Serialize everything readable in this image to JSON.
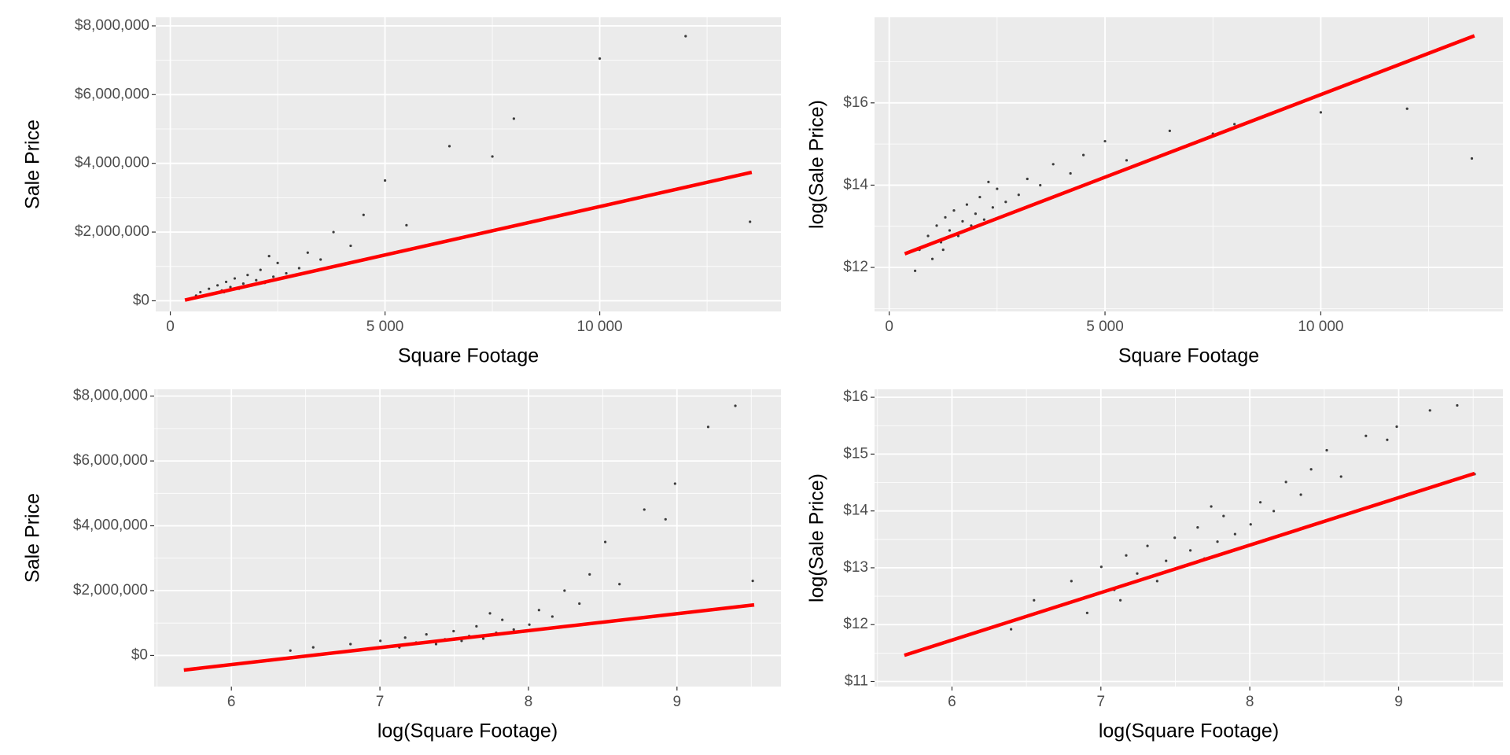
{
  "chart_data": [
    {
      "type": "scatter",
      "x_label": "Square Footage",
      "y_label": "Sale Price",
      "color": "#000000",
      "grid": true,
      "x": [
        700,
        900,
        1000,
        1100,
        1200,
        1300,
        1400,
        1500,
        1600,
        1700,
        1800,
        1900,
        2000,
        2100,
        2200,
        2400,
        2500,
        2700,
        3000,
        3200,
        3500,
        3800,
        4200,
        4500,
        5000,
        5500,
        6500,
        7500,
        8000,
        10000,
        12000,
        13500,
        600,
        1250,
        2300
      ],
      "values": [
        250000,
        350000,
        200000,
        450000,
        300000,
        550000,
        400000,
        650000,
        350000,
        500000,
        750000,
        450000,
        600000,
        900000,
        520000,
        700000,
        1100000,
        800000,
        950000,
        1400000,
        1200000,
        2000000,
        1600000,
        2500000,
        3500000,
        2200000,
        4500000,
        4200000,
        5300000,
        7050000,
        7700000,
        2300000,
        150000,
        250000,
        1300000
      ],
      "line": {
        "x": [
          340,
          13540
        ],
        "values": [
          20000,
          3740000
        ],
        "color": "#ff0000"
      },
      "xlim": [
        -340,
        14220
      ],
      "ylim": [
        -310000,
        8250000
      ],
      "xticks": [
        0,
        {
          "value": 5000,
          "label": "5 000"
        },
        {
          "value": 10000,
          "label": "10 000"
        }
      ],
      "yticks": [
        {
          "value": 0,
          "label": "$0"
        },
        {
          "value": 2000000,
          "label": "$2,000,000"
        },
        {
          "value": 4000000,
          "label": "$4,000,000"
        },
        {
          "value": 6000000,
          "label": "$6,000,000"
        },
        {
          "value": 8000000,
          "label": "$8,000,000"
        }
      ]
    },
    {
      "type": "scatter",
      "x_label": "Square Footage",
      "y_label": "log(Sale Price)",
      "color": "#000000",
      "grid": true,
      "x": [
        700,
        900,
        1000,
        1100,
        1200,
        1300,
        1400,
        1500,
        1600,
        1700,
        1800,
        1900,
        2000,
        2100,
        2200,
        2400,
        2500,
        2700,
        3000,
        3200,
        3500,
        3800,
        4200,
        4500,
        5000,
        5500,
        6500,
        7500,
        8000,
        10000,
        12000,
        13500,
        600,
        1250,
        2300
      ],
      "values": [
        12.429,
        12.766,
        12.206,
        13.017,
        12.612,
        13.218,
        12.899,
        13.385,
        12.766,
        13.122,
        13.528,
        13.017,
        13.305,
        13.71,
        13.162,
        13.459,
        13.911,
        13.592,
        13.764,
        14.152,
        13.998,
        14.509,
        14.286,
        14.732,
        15.068,
        14.604,
        15.32,
        15.251,
        15.483,
        15.769,
        15.857,
        14.648,
        11.918,
        12.429,
        14.078
      ],
      "line": {
        "x": [
          360,
          13560
        ],
        "values": [
          12.33,
          17.63
        ],
        "color": "#ff0000"
      },
      "xlim": [
        -340,
        14220
      ],
      "ylim": [
        10.93,
        18.08
      ],
      "xticks": [
        0,
        {
          "value": 5000,
          "label": "5 000"
        },
        {
          "value": 10000,
          "label": "10 000"
        }
      ],
      "yticks": [
        {
          "value": 12,
          "label": "$12"
        },
        {
          "value": 14,
          "label": "$14"
        },
        {
          "value": 16,
          "label": "$16"
        }
      ]
    },
    {
      "type": "scatter",
      "x_label": "log(Square Footage)",
      "y_label": "Sale Price",
      "color": "#000000",
      "grid": true,
      "x": [
        6.551,
        6.802,
        6.908,
        7.003,
        7.09,
        7.17,
        7.244,
        7.313,
        7.378,
        7.438,
        7.496,
        7.55,
        7.601,
        7.65,
        7.696,
        7.783,
        7.824,
        7.901,
        8.006,
        8.071,
        8.161,
        8.243,
        8.343,
        8.412,
        8.517,
        8.613,
        8.78,
        8.923,
        8.987,
        9.21,
        9.393,
        9.51,
        6.397,
        7.131,
        7.741
      ],
      "values": [
        250000,
        350000,
        200000,
        450000,
        300000,
        550000,
        400000,
        650000,
        350000,
        500000,
        750000,
        450000,
        600000,
        900000,
        520000,
        700000,
        1100000,
        800000,
        950000,
        1400000,
        1200000,
        2000000,
        1600000,
        2500000,
        3500000,
        2200000,
        4500000,
        4200000,
        5300000,
        7050000,
        7700000,
        2300000,
        150000,
        250000,
        1300000
      ],
      "line": {
        "x": [
          5.68,
          9.52
        ],
        "values": [
          -450000,
          1560000
        ],
        "color": "#ff0000"
      },
      "xlim": [
        5.48,
        9.7
      ],
      "ylim": [
        -960000,
        8210000
      ],
      "xticks": [
        6,
        7,
        8,
        9
      ],
      "yticks": [
        {
          "value": 0,
          "label": "$0"
        },
        {
          "value": 2000000,
          "label": "$2,000,000"
        },
        {
          "value": 4000000,
          "label": "$4,000,000"
        },
        {
          "value": 6000000,
          "label": "$6,000,000"
        },
        {
          "value": 8000000,
          "label": "$8,000,000"
        }
      ]
    },
    {
      "type": "scatter",
      "x_label": "log(Square Footage)",
      "y_label": "log(Sale Price)",
      "color": "#000000",
      "grid": true,
      "x": [
        6.551,
        6.802,
        6.908,
        7.003,
        7.09,
        7.17,
        7.244,
        7.313,
        7.378,
        7.438,
        7.496,
        7.55,
        7.601,
        7.65,
        7.696,
        7.783,
        7.824,
        7.901,
        8.006,
        8.071,
        8.161,
        8.243,
        8.343,
        8.412,
        8.517,
        8.613,
        8.78,
        8.923,
        8.987,
        9.21,
        9.393,
        9.51,
        6.397,
        7.131,
        7.741
      ],
      "values": [
        12.429,
        12.766,
        12.206,
        13.017,
        12.612,
        13.218,
        12.899,
        13.385,
        12.766,
        13.122,
        13.528,
        13.017,
        13.305,
        13.71,
        13.162,
        13.459,
        13.911,
        13.592,
        13.764,
        14.152,
        13.998,
        14.509,
        14.286,
        14.732,
        15.068,
        14.604,
        15.32,
        15.251,
        15.483,
        15.769,
        15.857,
        14.648,
        11.918,
        12.429,
        14.078
      ],
      "line": {
        "x": [
          5.68,
          9.51
        ],
        "values": [
          11.46,
          14.66
        ],
        "color": "#ff0000"
      },
      "xlim": [
        5.48,
        9.7
      ],
      "ylim": [
        10.91,
        16.14
      ],
      "xticks": [
        6,
        7,
        8,
        9
      ],
      "yticks": [
        {
          "value": 11,
          "label": "$11"
        },
        {
          "value": 12,
          "label": "$12"
        },
        {
          "value": 13,
          "label": "$13"
        },
        {
          "value": 14,
          "label": "$14"
        },
        {
          "value": 15,
          "label": "$15"
        },
        {
          "value": 16,
          "label": "$16"
        }
      ]
    }
  ]
}
